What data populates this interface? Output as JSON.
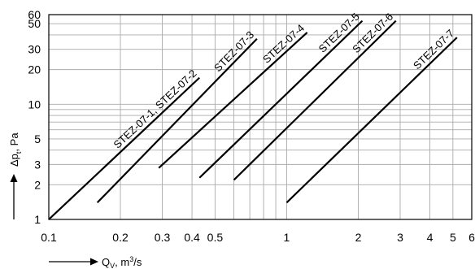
{
  "chart_data": {
    "type": "line",
    "x_scale": "log",
    "y_scale": "log",
    "xlim": [
      0.1,
      6
    ],
    "ylim": [
      1,
      60
    ],
    "grid": true,
    "x_ticks": [
      "0.1",
      "0.2",
      "0.3",
      "0.4",
      "0.5",
      "1",
      "2",
      "3",
      "4",
      "5",
      "6"
    ],
    "x_tick_values": [
      0.1,
      0.2,
      0.3,
      0.4,
      0.5,
      1,
      2,
      3,
      4,
      5,
      6
    ],
    "y_ticks": [
      "1",
      "2",
      "3",
      "5",
      "10",
      "20",
      "30",
      "50",
      "60"
    ],
    "y_tick_values": [
      1,
      2,
      3,
      5,
      10,
      20,
      30,
      50,
      60
    ],
    "xlabel": {
      "q": "Q",
      "sub": "V",
      "rest": ", m",
      "sup": "3",
      "end": "/s"
    },
    "ylabel": {
      "d": "Δp",
      "sub": "t",
      "end": ", Pa"
    },
    "series": [
      {
        "name": "STEZ-07-1, STEZ-07-2",
        "x": [
          0.1,
          0.43
        ],
        "y": [
          1,
          17
        ]
      },
      {
        "name": "STEZ-07-3",
        "x": [
          0.16,
          0.75
        ],
        "y": [
          1.4,
          37
        ]
      },
      {
        "name": "STEZ-07-4",
        "x": [
          0.29,
          1.22
        ],
        "y": [
          2.8,
          42
        ]
      },
      {
        "name": "STEZ-07-5",
        "x": [
          0.43,
          2.08
        ],
        "y": [
          2.3,
          53
        ]
      },
      {
        "name": "STEZ-07-6",
        "x": [
          0.6,
          2.88
        ],
        "y": [
          2.2,
          53
        ]
      },
      {
        "name": "STEZ-07-7",
        "x": [
          1.0,
          5.2
        ],
        "y": [
          1.4,
          38
        ]
      }
    ]
  }
}
